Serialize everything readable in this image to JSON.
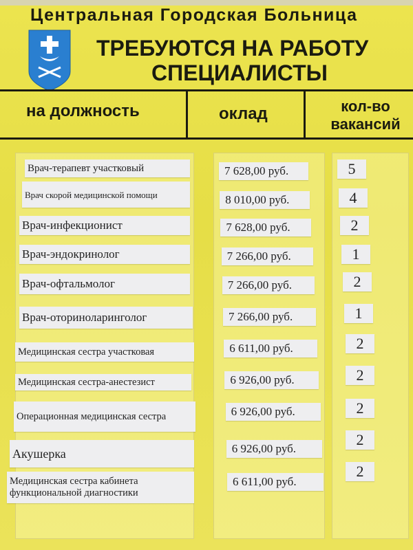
{
  "sign": {
    "hospital_name": "Центральная Городская Больница",
    "title_line1": "ТРЕБУЮТСЯ НА РАБОТУ",
    "title_line2": "СПЕЦИАЛИСТЫ",
    "crest": "city-coat-of-arms-blue-shield-cross-crescent-sabres"
  },
  "table": {
    "headers": [
      "на должность",
      "оклад",
      "кол-во вакансий"
    ],
    "rows": [
      {
        "position": "Врач-терапевт участковый",
        "salary": "7 628,00 руб.",
        "vacancies": "5"
      },
      {
        "position": "Врач скорой медицинской помощи",
        "salary": "8 010,00 руб.",
        "vacancies": "4"
      },
      {
        "position": "Врач-инфекционист",
        "salary": "7 628,00 руб.",
        "vacancies": "2"
      },
      {
        "position": "Врач-эндокринолог",
        "salary": "7 266,00 руб.",
        "vacancies": "1"
      },
      {
        "position": "Врач-офтальмолог",
        "salary": "7 266,00 руб.",
        "vacancies": "2"
      },
      {
        "position": "Врач-оториноларинголог",
        "salary": "7 266,00 руб.",
        "vacancies": "1"
      },
      {
        "position": "Медицинская сестра участковая",
        "salary": "6 611,00 руб.",
        "vacancies": "2"
      },
      {
        "position": "Медицинская сестра-анестезист",
        "salary": "6 926,00 руб.",
        "vacancies": "2"
      },
      {
        "position": "Операционная медицинская сестра",
        "salary": "6 926,00 руб.",
        "vacancies": "2"
      },
      {
        "position": "Акушерка",
        "salary": "6 926,00 руб.",
        "vacancies": "2"
      },
      {
        "position": "Медицинская сестра кабинета функциональной диагностики",
        "salary": "6 611,00 руб.",
        "vacancies": "2"
      }
    ]
  },
  "colors": {
    "board": "#e9e250",
    "text": "#1b1b10",
    "crest": "#2a7fd0",
    "card": "#eeeef0"
  }
}
